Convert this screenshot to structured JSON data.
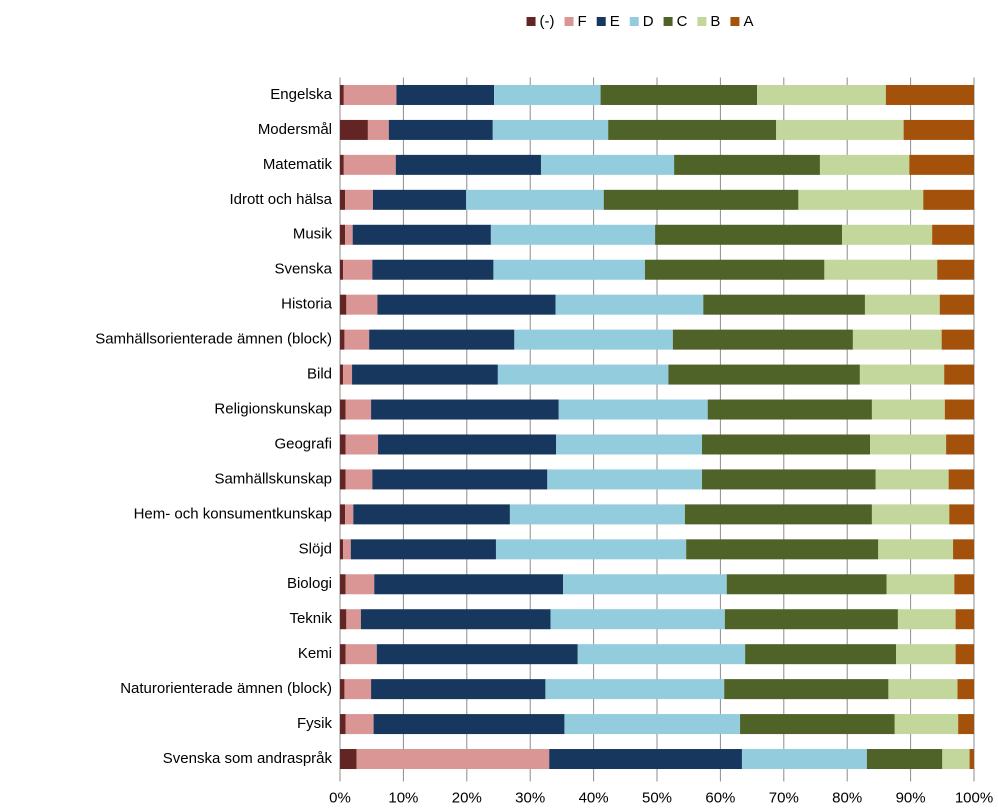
{
  "chart_data": {
    "type": "stacked_barh",
    "categories": [
      "Engelska",
      "Modersmål",
      "Matematik",
      "Idrott och hälsa",
      "Musik",
      "Svenska",
      "Historia",
      "Samhällsorienterade ämnen (block)",
      "Bild",
      "Religionskunskap",
      "Geografi",
      "Samhällskunskap",
      "Hem- och konsumentkunskap",
      "Slöjd",
      "Biologi",
      "Teknik",
      "Kemi",
      "Naturorienterade ämnen (block)",
      "Fysik",
      "Svenska som andraspråk"
    ],
    "series": [
      {
        "name": "(-)",
        "color": "#632523",
        "values": [
          0.6,
          4.4,
          0.6,
          0.8,
          0.8,
          0.5,
          1.0,
          0.7,
          0.5,
          0.9,
          0.9,
          0.9,
          0.8,
          0.5,
          0.9,
          1.0,
          0.9,
          0.7,
          0.9,
          2.6
        ]
      },
      {
        "name": "F",
        "color": "#d99694",
        "values": [
          8.3,
          3.3,
          8.2,
          4.4,
          1.2,
          4.6,
          4.9,
          3.9,
          1.4,
          4.0,
          5.1,
          4.2,
          1.3,
          1.2,
          4.5,
          2.3,
          4.9,
          4.2,
          4.4,
          30.4
        ]
      },
      {
        "name": "E",
        "color": "#17375e",
        "values": [
          15.4,
          16.4,
          22.9,
          14.7,
          21.8,
          19.1,
          28.1,
          22.9,
          23.0,
          29.6,
          28.1,
          27.6,
          24.7,
          22.9,
          29.8,
          29.9,
          31.7,
          27.5,
          30.1,
          30.4
        ]
      },
      {
        "name": "D",
        "color": "#93cddd",
        "values": [
          16.8,
          18.2,
          21.0,
          21.7,
          25.9,
          23.9,
          23.3,
          25.0,
          26.9,
          23.5,
          23.0,
          24.4,
          27.6,
          30.0,
          25.8,
          27.5,
          26.4,
          28.2,
          27.7,
          19.7
        ]
      },
      {
        "name": "C",
        "color": "#4f6228",
        "values": [
          24.7,
          26.5,
          23.0,
          30.7,
          29.5,
          28.3,
          25.5,
          28.4,
          30.2,
          25.9,
          26.5,
          27.4,
          29.5,
          30.3,
          25.2,
          27.3,
          23.8,
          25.9,
          24.4,
          11.9
        ]
      },
      {
        "name": "B",
        "color": "#c3d69b",
        "values": [
          20.3,
          20.1,
          14.1,
          19.7,
          14.2,
          17.8,
          11.8,
          14.0,
          13.3,
          11.5,
          12.0,
          11.5,
          12.2,
          11.8,
          10.7,
          9.1,
          9.4,
          10.9,
          10.0,
          4.3
        ]
      },
      {
        "name": "A",
        "color": "#a4510b",
        "values": [
          13.9,
          11.1,
          10.2,
          8.0,
          6.6,
          5.8,
          5.4,
          5.1,
          4.7,
          4.6,
          4.4,
          4.0,
          3.9,
          3.3,
          3.1,
          2.9,
          2.9,
          2.6,
          2.5,
          0.7
        ]
      }
    ],
    "xlim": [
      0,
      100
    ],
    "xticks": [
      {
        "value": 0,
        "label": "0%"
      },
      {
        "value": 10,
        "label": "10%"
      },
      {
        "value": 20,
        "label": "20%"
      },
      {
        "value": 30,
        "label": "30%"
      },
      {
        "value": 40,
        "label": "40%"
      },
      {
        "value": 50,
        "label": "50%"
      },
      {
        "value": 60,
        "label": "60%"
      },
      {
        "value": 70,
        "label": "70%"
      },
      {
        "value": 80,
        "label": "80%"
      },
      {
        "value": 90,
        "label": "90%"
      },
      {
        "value": 100,
        "label": "100%"
      }
    ],
    "grid": true,
    "legend": "top"
  }
}
